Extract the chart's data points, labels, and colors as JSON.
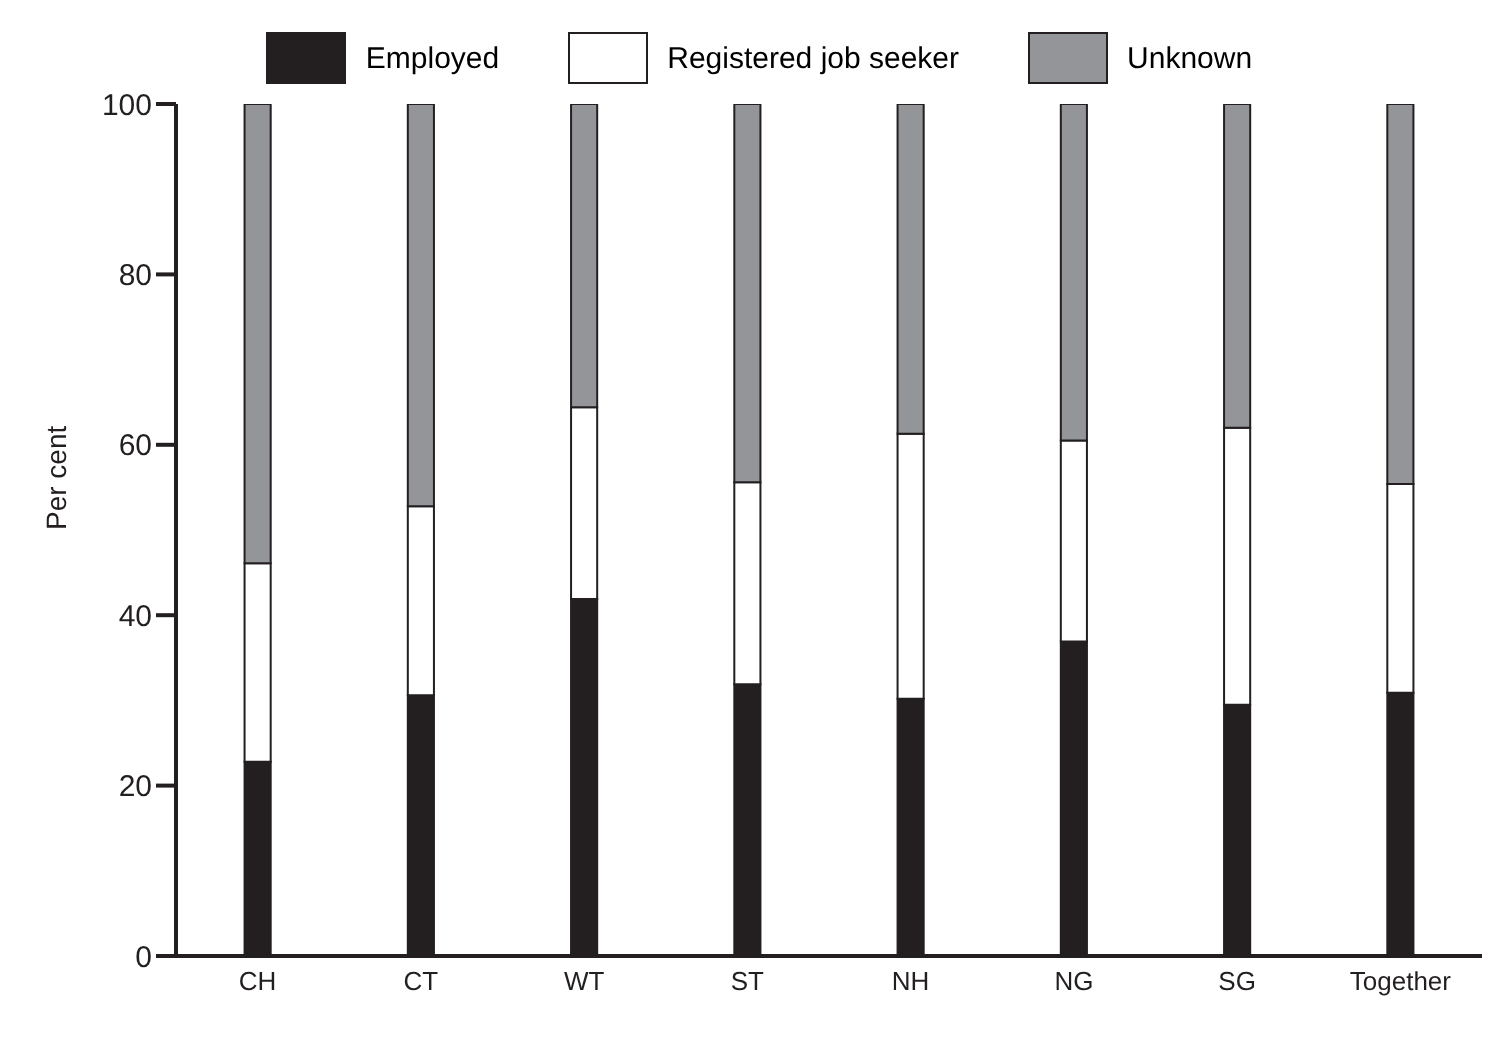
{
  "chart_data": {
    "type": "bar",
    "stacked": true,
    "ylabel": "Per cent",
    "categories": [
      "CH",
      "CT",
      "WT",
      "ST",
      "NH",
      "NG",
      "SG",
      "Together"
    ],
    "series": [
      {
        "name": "Employed",
        "color": "#231f20",
        "values": [
          22.8,
          30.6,
          41.9,
          31.9,
          30.2,
          36.9,
          29.5,
          30.9
        ]
      },
      {
        "name": "Registered job seeker",
        "color": "#ffffff",
        "values": [
          23.3,
          22.2,
          22.5,
          23.7,
          31.1,
          23.6,
          32.5,
          24.5
        ]
      },
      {
        "name": "Unknown",
        "color": "#939598",
        "values": [
          53.9,
          47.2,
          35.6,
          44.4,
          38.7,
          39.5,
          38.0,
          44.6
        ]
      }
    ],
    "ylim": [
      0,
      100
    ],
    "yticks": [
      0,
      20,
      40,
      60,
      80,
      100
    ],
    "grid": false,
    "legend": "top"
  }
}
